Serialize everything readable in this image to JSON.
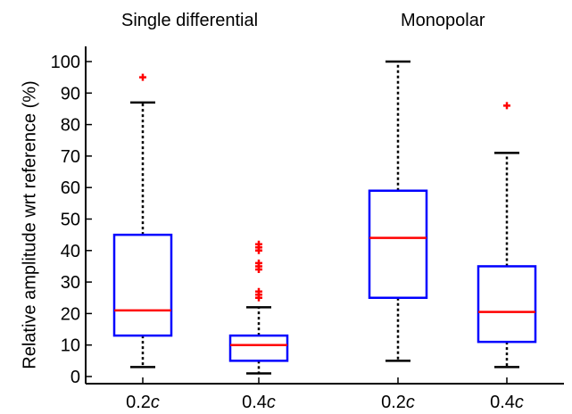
{
  "chart_data": {
    "type": "boxplot",
    "group_titles": [
      "Single differential",
      "Monopolar"
    ],
    "ylabel": "Relative amplitude wrt reference (%)",
    "ylim": [
      -2,
      103
    ],
    "yticks": [
      0,
      10,
      20,
      30,
      40,
      50,
      60,
      70,
      80,
      90,
      100
    ],
    "ytick_labels": [
      "0",
      "10",
      "20",
      "30",
      "40",
      "50",
      "60",
      "70",
      "80",
      "90",
      "100"
    ],
    "grid": false,
    "colors": {
      "box": "#0000ff",
      "median": "#ff0000",
      "whisker": "#000000",
      "outlier": "#ff0000"
    },
    "boxes": [
      {
        "group": "Single differential",
        "label": "0.2",
        "label_var": "c",
        "whisker_low": 3,
        "q1": 13,
        "median": 21,
        "q3": 45,
        "whisker_high": 87,
        "outliers": [
          95
        ]
      },
      {
        "group": "Single differential",
        "label": "0.4",
        "label_var": "c",
        "whisker_low": 1,
        "q1": 5,
        "median": 10,
        "q3": 13,
        "whisker_high": 22,
        "outliers": [
          25,
          26,
          27,
          34,
          35,
          36,
          40,
          41,
          42
        ]
      },
      {
        "group": "Monopolar",
        "label": "0.2",
        "label_var": "c",
        "whisker_low": 5,
        "q1": 25,
        "median": 44,
        "q3": 59,
        "whisker_high": 100,
        "outliers": []
      },
      {
        "group": "Monopolar",
        "label": "0.4",
        "label_var": "c",
        "whisker_low": 3,
        "q1": 11,
        "median": 20.5,
        "q3": 35,
        "whisker_high": 71,
        "outliers": [
          86
        ]
      }
    ]
  }
}
